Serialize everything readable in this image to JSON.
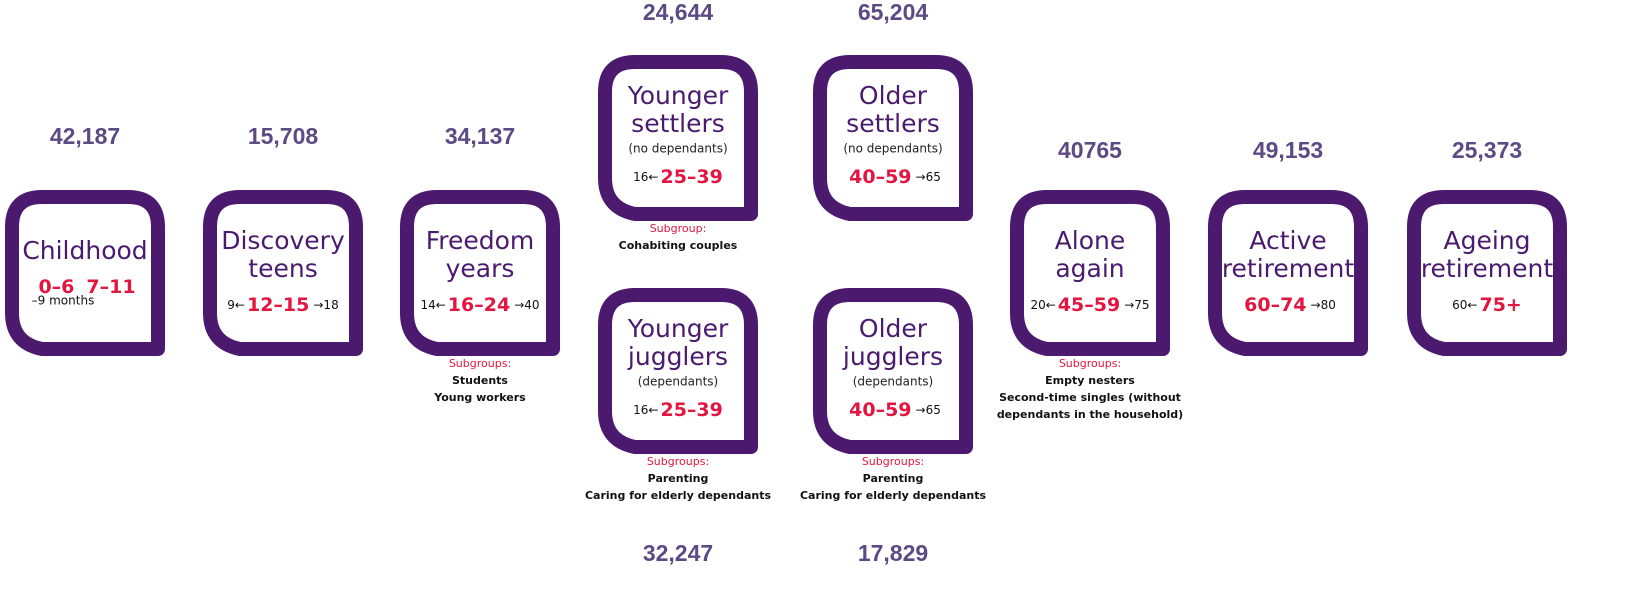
{
  "nodes": [
    {
      "count": "42,187",
      "title": [
        "Childhood"
      ],
      "ages": {
        "main": [
          "0–6",
          "7–11"
        ],
        "note": "–9 months"
      }
    },
    {
      "count": "15,708",
      "title": [
        "Discovery",
        "teens"
      ],
      "ages": {
        "before": "9←",
        "main": [
          "12–15"
        ],
        "after": "→18"
      }
    },
    {
      "count": "34,137",
      "title": [
        "Freedom",
        "years"
      ],
      "ages": {
        "before": "14←",
        "main": [
          "16–24"
        ],
        "after": "→40"
      },
      "subgroups": {
        "heading": "Subgroups:",
        "items": [
          "Students",
          "Young workers"
        ]
      }
    },
    {
      "count": "24,644",
      "title": [
        "Younger",
        "settlers"
      ],
      "qualifier": "(no dependants)",
      "ages": {
        "before": "16←",
        "main": [
          "25–39"
        ]
      },
      "subgroups": {
        "heading": "Subgroup:",
        "items": [
          "Cohabiting couples"
        ]
      }
    },
    {
      "count": "65,204",
      "title": [
        "Older",
        "settlers"
      ],
      "qualifier": "(no dependants)",
      "ages": {
        "main": [
          "40–59"
        ],
        "after": "→65"
      }
    },
    {
      "count": "32,247",
      "title": [
        "Younger",
        "jugglers"
      ],
      "qualifier": "(dependants)",
      "ages": {
        "before": "16←",
        "main": [
          "25–39"
        ]
      },
      "subgroups": {
        "heading": "Subgroups:",
        "items": [
          "Parenting",
          "Caring for elderly dependants"
        ]
      }
    },
    {
      "count": "17,829",
      "title": [
        "Older",
        "jugglers"
      ],
      "qualifier": "(dependants)",
      "ages": {
        "main": [
          "40–59"
        ],
        "after": "→65"
      },
      "subgroups": {
        "heading": "Subgroups:",
        "items": [
          "Parenting",
          "Caring for elderly dependants"
        ]
      }
    },
    {
      "count": "40765",
      "title": [
        "Alone",
        "again"
      ],
      "ages": {
        "before": "20←",
        "main": [
          "45–59"
        ],
        "after": "→75"
      },
      "subgroups": {
        "heading": "Subgroups:",
        "items": [
          "Empty nesters",
          "Second-time singles (without",
          "dependants in the household)"
        ]
      }
    },
    {
      "count": "49,153",
      "title": [
        "Active",
        "retirement"
      ],
      "ages": {
        "main": [
          "60–74"
        ],
        "after": "→80"
      }
    },
    {
      "count": "25,373",
      "title": [
        "Ageing",
        "retirement"
      ],
      "ages": {
        "before": "60←",
        "main": [
          "75+"
        ]
      }
    }
  ]
}
